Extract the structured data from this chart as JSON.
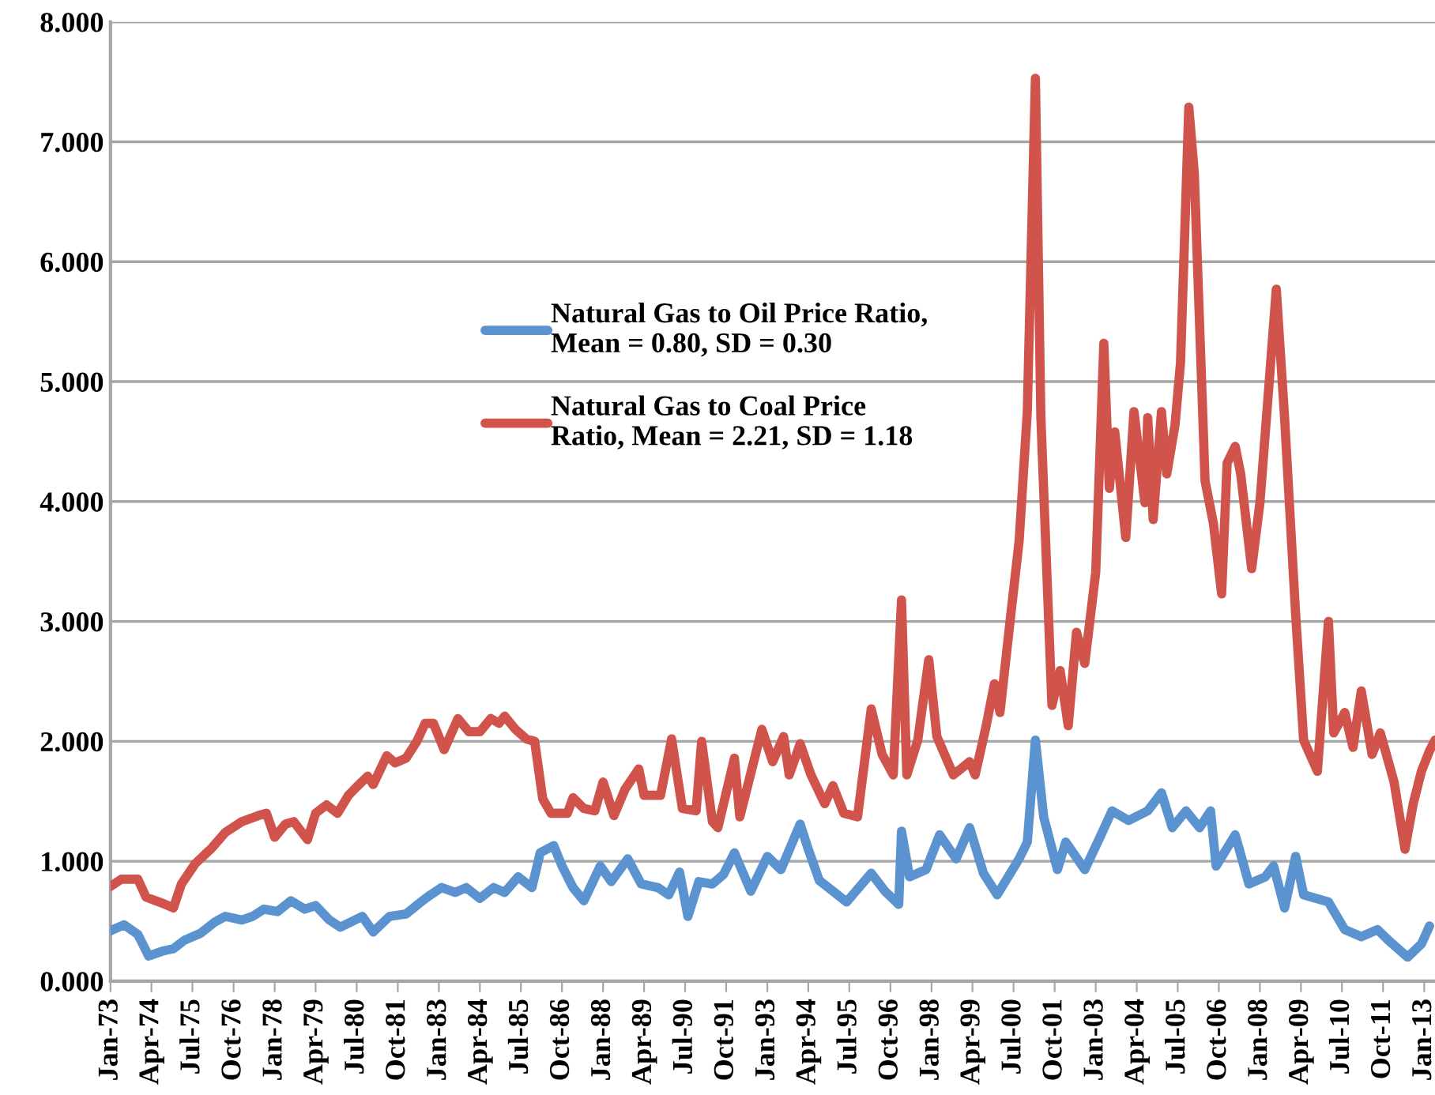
{
  "chart_data": {
    "type": "line",
    "xlim": [
      "1973-01",
      "2013-05"
    ],
    "ylim": [
      0,
      8
    ],
    "yticks": [
      {
        "value": 0,
        "label": "0.000"
      },
      {
        "value": 1,
        "label": "1.000"
      },
      {
        "value": 2,
        "label": "2.000"
      },
      {
        "value": 3,
        "label": "3.000"
      },
      {
        "value": 4,
        "label": "4.000"
      },
      {
        "value": 5,
        "label": "5.000"
      },
      {
        "value": 6,
        "label": "6.000"
      },
      {
        "value": 7,
        "label": "7.000"
      },
      {
        "value": 8,
        "label": "8.000"
      }
    ],
    "xticks": [
      {
        "value": "1973-01",
        "label": "Jan-73"
      },
      {
        "value": "1974-04",
        "label": "Apr-74"
      },
      {
        "value": "1975-07",
        "label": "Jul-75"
      },
      {
        "value": "1976-10",
        "label": "Oct-76"
      },
      {
        "value": "1978-01",
        "label": "Jan-78"
      },
      {
        "value": "1979-04",
        "label": "Apr-79"
      },
      {
        "value": "1980-07",
        "label": "Jul-80"
      },
      {
        "value": "1981-10",
        "label": "Oct-81"
      },
      {
        "value": "1983-01",
        "label": "Jan-83"
      },
      {
        "value": "1984-04",
        "label": "Apr-84"
      },
      {
        "value": "1985-07",
        "label": "Jul-85"
      },
      {
        "value": "1986-10",
        "label": "Oct-86"
      },
      {
        "value": "1988-01",
        "label": "Jan-88"
      },
      {
        "value": "1989-04",
        "label": "Apr-89"
      },
      {
        "value": "1990-07",
        "label": "Jul-90"
      },
      {
        "value": "1991-10",
        "label": "Oct-91"
      },
      {
        "value": "1993-01",
        "label": "Jan-93"
      },
      {
        "value": "1994-04",
        "label": "Apr-94"
      },
      {
        "value": "1995-07",
        "label": "Jul-95"
      },
      {
        "value": "1996-10",
        "label": "Oct-96"
      },
      {
        "value": "1998-01",
        "label": "Jan-98"
      },
      {
        "value": "1999-04",
        "label": "Apr-99"
      },
      {
        "value": "2000-07",
        "label": "Jul-00"
      },
      {
        "value": "2001-10",
        "label": "Oct-01"
      },
      {
        "value": "2003-01",
        "label": "Jan-03"
      },
      {
        "value": "2004-04",
        "label": "Apr-04"
      },
      {
        "value": "2005-07",
        "label": "Jul-05"
      },
      {
        "value": "2006-10",
        "label": "Oct-06"
      },
      {
        "value": "2008-01",
        "label": "Jan-08"
      },
      {
        "value": "2009-04",
        "label": "Apr-09"
      },
      {
        "value": "2010-07",
        "label": "Jul-10"
      },
      {
        "value": "2011-10",
        "label": "Oct-11"
      },
      {
        "value": "2013-01",
        "label": "Jan-13"
      }
    ],
    "grid": "y",
    "legend": "center",
    "series": [
      {
        "name": "Natural Gas to Oil Price Ratio,\nMean = 0.80, SD = 0.30",
        "color": "#5b93d1",
        "x": [
          "1973-01",
          "1973-06",
          "1973-11",
          "1974-03",
          "1974-08",
          "1974-12",
          "1975-04",
          "1975-10",
          "1976-03",
          "1976-07",
          "1977-01",
          "1977-05",
          "1977-09",
          "1978-02",
          "1978-07",
          "1978-12",
          "1979-04",
          "1979-09",
          "1980-01",
          "1980-09",
          "1981-01",
          "1981-07",
          "1982-01",
          "1982-07",
          "1982-10",
          "1983-02",
          "1983-07",
          "1983-11",
          "1984-04",
          "1984-09",
          "1985-01",
          "1985-06",
          "1985-11",
          "1986-02",
          "1986-07",
          "1986-10",
          "1987-02",
          "1987-06",
          "1987-12",
          "1988-04",
          "1988-10",
          "1989-03",
          "1989-09",
          "1990-01",
          "1990-05",
          "1990-08",
          "1990-12",
          "1991-05",
          "1991-09",
          "1992-01",
          "1992-07",
          "1993-01",
          "1993-06",
          "1994-01",
          "1994-04",
          "1994-08",
          "1995-06",
          "1996-03",
          "1996-08",
          "1997-01",
          "1997-02",
          "1997-05",
          "1997-11",
          "1998-04",
          "1998-10",
          "1999-03",
          "1999-08",
          "2000-01",
          "2000-09",
          "2000-12",
          "2001-03",
          "2001-06",
          "2001-11",
          "2002-02",
          "2002-09",
          "2003-03",
          "2003-07",
          "2004-01",
          "2004-08",
          "2005-01",
          "2005-05",
          "2005-10",
          "2006-03",
          "2006-07",
          "2006-09",
          "2007-04",
          "2007-09",
          "2008-03",
          "2008-06",
          "2008-10",
          "2009-02",
          "2009-05",
          "2010-02",
          "2010-08",
          "2011-02",
          "2011-08",
          "2011-12",
          "2012-07",
          "2012-12",
          "2013-03"
        ],
        "values": [
          0.42,
          0.47,
          0.39,
          0.21,
          0.25,
          0.27,
          0.34,
          0.4,
          0.49,
          0.54,
          0.51,
          0.54,
          0.6,
          0.58,
          0.67,
          0.6,
          0.63,
          0.51,
          0.45,
          0.54,
          0.41,
          0.54,
          0.56,
          0.67,
          0.72,
          0.78,
          0.74,
          0.78,
          0.69,
          0.78,
          0.74,
          0.87,
          0.78,
          1.07,
          1.13,
          0.96,
          0.78,
          0.67,
          0.96,
          0.83,
          1.02,
          0.81,
          0.78,
          0.72,
          0.91,
          0.54,
          0.83,
          0.81,
          0.89,
          1.07,
          0.75,
          1.04,
          0.93,
          1.31,
          1.1,
          0.84,
          0.66,
          0.9,
          0.75,
          0.64,
          1.25,
          0.87,
          0.93,
          1.22,
          1.02,
          1.28,
          0.9,
          0.72,
          1.02,
          1.16,
          2.01,
          1.37,
          0.93,
          1.16,
          0.93,
          1.22,
          1.42,
          1.34,
          1.42,
          1.57,
          1.28,
          1.42,
          1.28,
          1.42,
          0.96,
          1.22,
          0.81,
          0.87,
          0.96,
          0.61,
          1.04,
          0.72,
          0.66,
          0.43,
          0.37,
          0.43,
          0.34,
          0.2,
          0.31,
          0.46
        ]
      },
      {
        "name": "Natural Gas to Coal Price\nRatio, Mean = 2.21, SD = 1.18",
        "color": "#d0534c",
        "x": [
          "1973-01",
          "1973-05",
          "1973-11",
          "1974-02",
          "1974-08",
          "1974-12",
          "1975-03",
          "1975-08",
          "1976-02",
          "1976-07",
          "1977-01",
          "1977-07",
          "1977-10",
          "1978-01",
          "1978-05",
          "1978-08",
          "1979-01",
          "1979-04",
          "1979-08",
          "1979-12",
          "1980-04",
          "1980-07",
          "1980-11",
          "1981-01",
          "1981-06",
          "1981-09",
          "1982-01",
          "1982-05",
          "1982-08",
          "1982-11",
          "1983-03",
          "1983-08",
          "1983-12",
          "1984-04",
          "1984-08",
          "1984-11",
          "1985-01",
          "1985-05",
          "1985-09",
          "1985-12",
          "1986-03",
          "1986-06",
          "1986-12",
          "1987-02",
          "1987-06",
          "1987-10",
          "1988-01",
          "1988-05",
          "1988-09",
          "1989-02",
          "1989-04",
          "1989-10",
          "1990-02",
          "1990-06",
          "1990-11",
          "1991-01",
          "1991-05",
          "1991-07",
          "1992-01",
          "1992-03",
          "1992-11",
          "1993-03",
          "1993-07",
          "1993-09",
          "1994-01",
          "1994-05",
          "1994-10",
          "1995-01",
          "1995-05",
          "1995-10",
          "1996-03",
          "1996-07",
          "1996-11",
          "1997-02",
          "1997-04",
          "1997-08",
          "1997-12",
          "1998-03",
          "1998-09",
          "1999-03",
          "1999-05",
          "1999-09",
          "1999-12",
          "2000-02",
          "2000-06",
          "2000-09",
          "2000-12",
          "2001-03",
          "2001-05",
          "2001-09",
          "2001-12",
          "2002-03",
          "2002-06",
          "2002-09",
          "2003-01",
          "2003-04",
          "2003-06",
          "2003-08",
          "2003-12",
          "2004-03",
          "2004-07",
          "2004-08",
          "2004-10",
          "2005-01",
          "2005-03",
          "2005-06",
          "2005-08",
          "2005-11",
          "2006-01",
          "2006-05",
          "2006-08",
          "2006-11",
          "2007-01",
          "2007-04",
          "2007-06",
          "2007-10",
          "2008-01",
          "2008-07",
          "2008-10",
          "2009-02",
          "2009-05",
          "2009-10",
          "2010-02",
          "2010-04",
          "2010-08",
          "2010-11",
          "2011-02",
          "2011-06",
          "2011-09",
          "2012-02",
          "2012-06",
          "2012-09",
          "2012-12",
          "2013-03",
          "2013-05"
        ],
        "values": [
          0.79,
          0.85,
          0.85,
          0.7,
          0.65,
          0.61,
          0.81,
          0.98,
          1.11,
          1.24,
          1.33,
          1.38,
          1.4,
          1.2,
          1.31,
          1.33,
          1.18,
          1.4,
          1.47,
          1.4,
          1.55,
          1.62,
          1.71,
          1.64,
          1.88,
          1.82,
          1.86,
          2.0,
          2.15,
          2.15,
          1.93,
          2.19,
          2.08,
          2.08,
          2.19,
          2.15,
          2.21,
          2.1,
          2.02,
          2.0,
          1.52,
          1.4,
          1.4,
          1.53,
          1.44,
          1.42,
          1.66,
          1.38,
          1.6,
          1.77,
          1.55,
          1.55,
          2.02,
          1.44,
          1.42,
          2.0,
          1.33,
          1.28,
          1.86,
          1.37,
          2.1,
          1.83,
          2.04,
          1.72,
          1.98,
          1.72,
          1.48,
          1.63,
          1.4,
          1.37,
          2.27,
          1.89,
          1.72,
          3.18,
          1.72,
          2.01,
          2.68,
          2.04,
          1.72,
          1.83,
          1.72,
          2.13,
          2.48,
          2.24,
          3.06,
          3.67,
          4.75,
          7.53,
          4.7,
          2.3,
          2.59,
          2.13,
          2.91,
          2.65,
          3.41,
          5.32,
          4.11,
          4.58,
          3.7,
          4.75,
          3.99,
          4.7,
          3.85,
          4.75,
          4.23,
          4.64,
          5.16,
          7.29,
          6.74,
          4.17,
          3.82,
          3.23,
          4.32,
          4.46,
          4.23,
          3.44,
          3.99,
          5.77,
          4.7,
          3.06,
          2.01,
          1.75,
          3.0,
          2.07,
          2.24,
          1.95,
          2.42,
          1.89,
          2.07,
          1.66,
          1.1,
          1.48,
          1.75,
          1.92,
          2.01
        ]
      }
    ]
  }
}
